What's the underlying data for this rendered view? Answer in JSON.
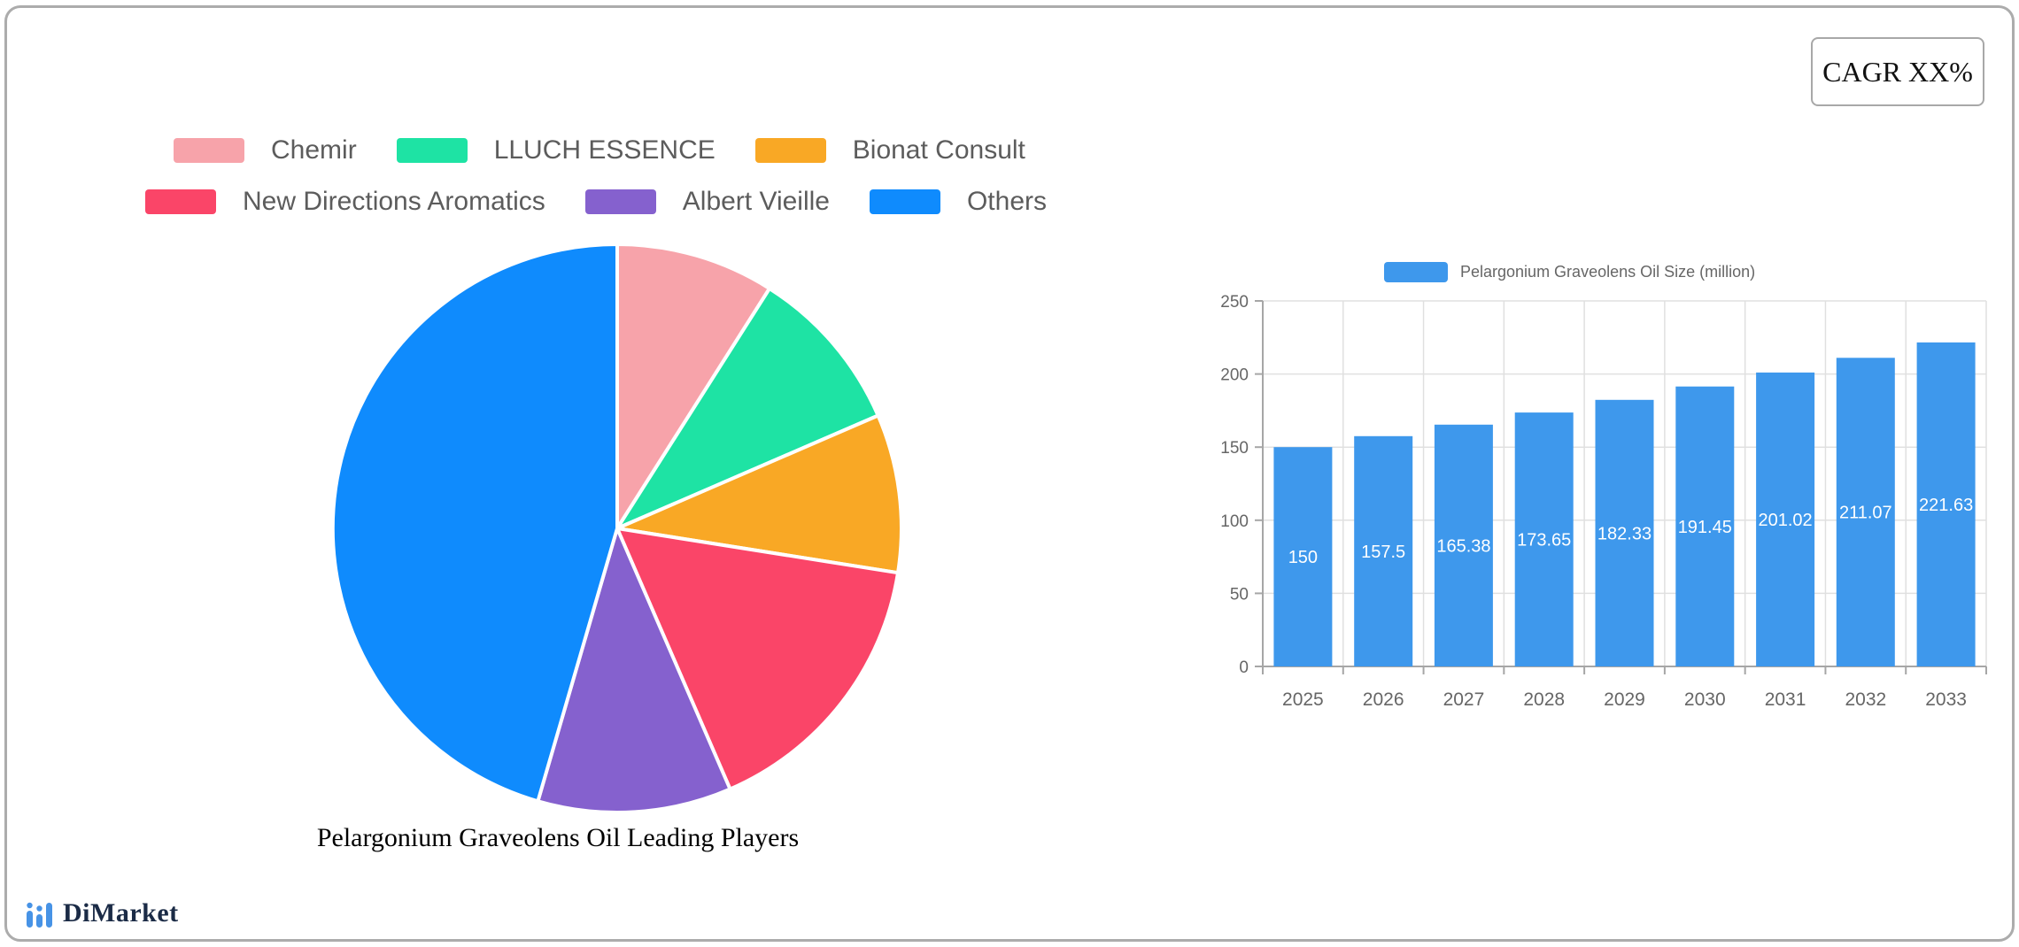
{
  "cagr": {
    "label": "CAGR XX%"
  },
  "logo": {
    "text": "DiMarket",
    "icon_color": "#4793e6"
  },
  "chart_data": [
    {
      "type": "pie",
      "title": "Pelargonium Graveolens Oil Leading Players",
      "legend_position": "top",
      "start_angle_deg": 0,
      "direction": "clockwise",
      "slices": [
        {
          "label": "Chemir",
          "value_pct": 9,
          "color": "#f7a3aa"
        },
        {
          "label": "LLUCH ESSENCE",
          "value_pct": 9.5,
          "color": "#1ee3a4"
        },
        {
          "label": "Bionat Consult",
          "value_pct": 9,
          "color": "#f9a825"
        },
        {
          "label": "New Directions Aromatics",
          "value_pct": 16,
          "color": "#fa4568"
        },
        {
          "label": "Albert Vieille",
          "value_pct": 11,
          "color": "#8561ce"
        },
        {
          "label": "Others",
          "value_pct": 45.5,
          "color": "#0f8bfd"
        }
      ]
    },
    {
      "type": "bar",
      "series_label": "Pelargonium Graveolens Oil Size (million)",
      "categories": [
        "2025",
        "2026",
        "2027",
        "2028",
        "2029",
        "2030",
        "2031",
        "2032",
        "2033"
      ],
      "values": [
        150,
        157.5,
        165.38,
        173.65,
        182.33,
        191.45,
        201.02,
        211.07,
        221.63
      ],
      "ylim": [
        0,
        250
      ],
      "ytick_step": 50,
      "bar_color": "#3e98ec",
      "grid": true,
      "legend_position": "top",
      "colors": {
        "grid_line": "#e0e0e0",
        "axis_line": "#a6a6a6",
        "tick_text": "#666666",
        "value_label": "#ffffff"
      }
    }
  ]
}
